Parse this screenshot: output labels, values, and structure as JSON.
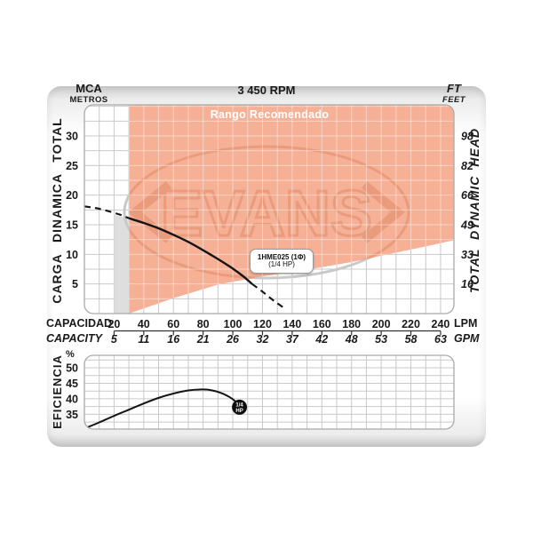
{
  "header": {
    "unit_left_top": "MCA",
    "unit_left_bottom": "METROS",
    "title": "3 450 RPM",
    "unit_right_top": "FT",
    "unit_right_bottom": "FEET"
  },
  "axes": {
    "left_label": "CARGA DINAMICA TOTAL",
    "right_label": "TOTAL DYNAMIC HEAD",
    "x_label_primary": "CAPACIDAD",
    "x_label_secondary": "CAPACITY",
    "x_unit_primary": "LPM",
    "x_unit_secondary": "GPM",
    "efficiency_label": "EFICIENCIA",
    "efficiency_unit": "%"
  },
  "region": {
    "label": "Rango Recomendado"
  },
  "curve_label": {
    "line1": "1HME025 (1Φ)",
    "line2": "(1/4 HP)"
  },
  "watermark": {
    "text": "EVANS",
    "registered": "®"
  },
  "colors": {
    "orange_fill": "#f5b096",
    "orange_watermark": "#ea9b7c",
    "gray_watermark": "#c9c9c9",
    "gray_band": "#dedede",
    "grid": "#c9c9c9",
    "grid_on_orange": "rgba(255,255,255,0.45)",
    "plot_border": "#a9a9a9",
    "curve": "#141414",
    "axis_text": "#1a1a1a"
  },
  "chart_data": [
    {
      "type": "line",
      "name": "pump-head-curve",
      "title": "3 450 RPM",
      "model": "1HME025 (1Φ) (1/4 HP)",
      "xlabel": "CAPACIDAD / CAPACITY",
      "ylabel_left": "CARGA DINAMICA TOTAL (MCA / METROS)",
      "ylabel_right": "TOTAL DYNAMIC HEAD (FT / FEET)",
      "xlim": [
        0,
        249
      ],
      "ylim": [
        0,
        35.25
      ],
      "grid": {
        "x_step_lpm": 10,
        "y_step_mca": 2.5
      },
      "x_ticks": [
        {
          "lpm": 20,
          "gpm": "5"
        },
        {
          "lpm": 40,
          "gpm": "11"
        },
        {
          "lpm": 60,
          "gpm": "16"
        },
        {
          "lpm": 80,
          "gpm": "21"
        },
        {
          "lpm": 100,
          "gpm": "26"
        },
        {
          "lpm": 120,
          "gpm": "32"
        },
        {
          "lpm": 140,
          "gpm": "37"
        },
        {
          "lpm": 160,
          "gpm": "42"
        },
        {
          "lpm": 180,
          "gpm": "48"
        },
        {
          "lpm": 200,
          "gpm": "53"
        },
        {
          "lpm": 220,
          "gpm": "58"
        },
        {
          "lpm": 240,
          "gpm": "63"
        }
      ],
      "y_ticks": [
        {
          "mca": 5,
          "ft": "16"
        },
        {
          "mca": 10,
          "ft": "33"
        },
        {
          "mca": 15,
          "ft": "49"
        },
        {
          "mca": 20,
          "ft": "66"
        },
        {
          "mca": 25,
          "ft": "82"
        },
        {
          "mca": 30,
          "ft": "98"
        }
      ],
      "series": [
        {
          "name": "head_dashed_low",
          "style": "dashed",
          "points": [
            [
              0,
              18.1
            ],
            [
              8,
              17.8
            ],
            [
              16,
              17.3
            ],
            [
              24,
              16.7
            ],
            [
              30,
              16.1
            ]
          ]
        },
        {
          "name": "head_solid",
          "style": "solid",
          "points": [
            [
              30,
              16.1
            ],
            [
              40,
              15.3
            ],
            [
              50,
              14.4
            ],
            [
              60,
              13.3
            ],
            [
              70,
              12.1
            ],
            [
              80,
              10.7
            ],
            [
              90,
              9.2
            ],
            [
              100,
              7.6
            ],
            [
              107,
              6.3
            ],
            [
              113,
              5.0
            ]
          ]
        },
        {
          "name": "head_dashed_high",
          "style": "dashed",
          "points": [
            [
              113,
              5.0
            ],
            [
              120,
              3.7
            ],
            [
              128,
              2.1
            ],
            [
              136,
              0.7
            ]
          ]
        }
      ],
      "recommended_region": {
        "label": "Rango Recomendado",
        "x_start_lpm": 30,
        "boundary_points": [
          [
            30,
            0
          ],
          [
            60,
            2.6
          ],
          [
            90,
            4.9
          ],
          [
            120,
            6.3
          ],
          [
            150,
            7.4
          ],
          [
            180,
            8.7
          ],
          [
            210,
            10.3
          ],
          [
            235,
            11.6
          ],
          [
            249,
            12.4
          ]
        ]
      },
      "gray_band_lpm": [
        20,
        30
      ]
    },
    {
      "type": "line",
      "name": "efficiency-curve",
      "ylabel": "EFICIENCIA %",
      "xlim": [
        0,
        249
      ],
      "ylim": [
        30.25,
        54
      ],
      "grid": {
        "x_step_lpm": 10,
        "y_step_pct": 2.5
      },
      "y_ticks": [
        35,
        40,
        45,
        50
      ],
      "points": [
        [
          1,
          30.6
        ],
        [
          10,
          32.4
        ],
        [
          20,
          34.5
        ],
        [
          30,
          36.5
        ],
        [
          40,
          38.5
        ],
        [
          50,
          40.3
        ],
        [
          60,
          41.7
        ],
        [
          70,
          42.7
        ],
        [
          78,
          43.0
        ],
        [
          85,
          42.8
        ],
        [
          92,
          41.9
        ],
        [
          98,
          40.5
        ],
        [
          102,
          39.1
        ],
        [
          104.5,
          37.8
        ]
      ],
      "end_marker": {
        "x": 104.5,
        "y": 37.3,
        "label_lines": [
          "1/4",
          "HP"
        ]
      }
    }
  ]
}
